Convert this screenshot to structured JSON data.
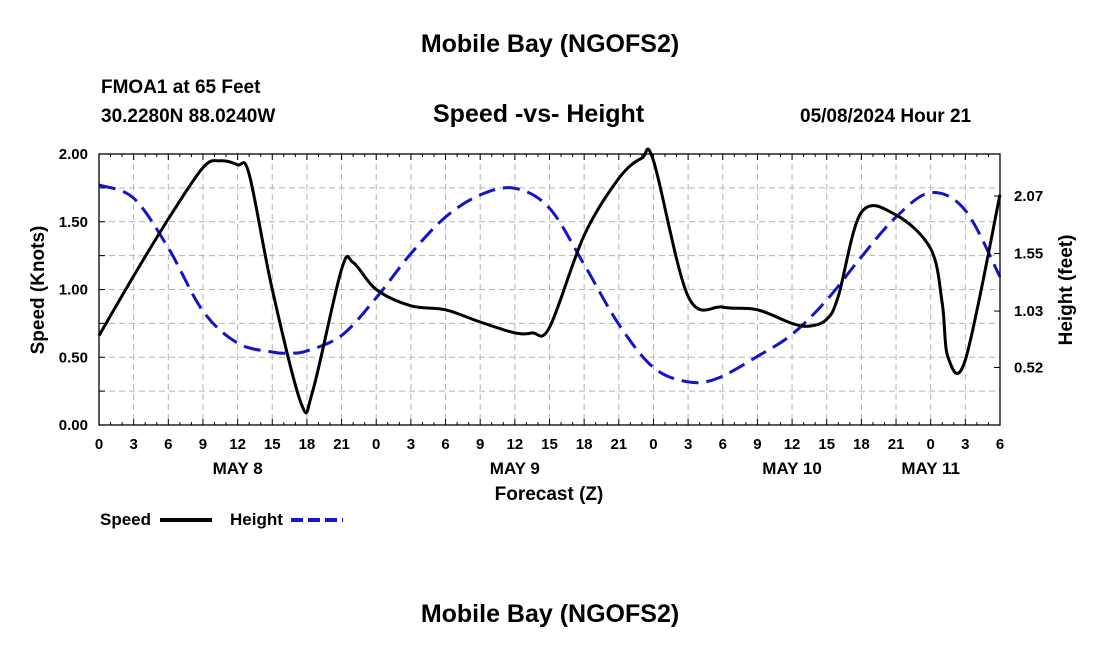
{
  "header": {
    "title": "Mobile Bay (NGOFS2)",
    "station": "FMOA1 at 65 Feet",
    "coords": "30.2280N  88.0240W",
    "subtitle": "Speed -vs- Height",
    "timestamp": "05/08/2024 Hour 21"
  },
  "footer": {
    "title": "Mobile Bay (NGOFS2)"
  },
  "chart_data": {
    "type": "line",
    "title": "Speed -vs- Height",
    "xlabel": "Forecast (Z)",
    "ylabel": "Speed (Knots)",
    "y2label": "Height (feet)",
    "x_tick_labels": [
      "0",
      "3",
      "6",
      "9",
      "12",
      "15",
      "18",
      "21",
      "0",
      "3",
      "6",
      "9",
      "12",
      "15",
      "18",
      "21",
      "0",
      "3",
      "6",
      "9",
      "12",
      "15",
      "18",
      "21",
      "0",
      "3",
      "6"
    ],
    "day_labels": [
      {
        "label": "MAY 8",
        "hour": 12
      },
      {
        "label": "MAY 9",
        "hour": 36
      },
      {
        "label": "MAY 10",
        "hour": 60
      },
      {
        "label": "MAY 11",
        "hour": 72
      }
    ],
    "xlim": [
      0,
      78
    ],
    "ylim": [
      0,
      2.0
    ],
    "y_ticks": [
      "0.00",
      "0.50",
      "1.00",
      "1.50",
      "2.00"
    ],
    "y2_ticks": [
      "0.52",
      "1.03",
      "1.55",
      "2.07"
    ],
    "y2_tick_values": [
      0.52,
      1.03,
      1.55,
      2.07
    ],
    "y2lim": [
      0.0,
      2.45
    ],
    "grid": true,
    "legend": "bottom-left",
    "series": [
      {
        "name": "Speed",
        "axis": "left",
        "color": "#000000",
        "dash": "solid",
        "x": [
          0,
          3,
          6,
          9,
          10.5,
          12,
          13,
          15,
          17.5,
          18.5,
          21,
          22,
          24,
          27,
          30,
          33,
          36,
          37.5,
          39,
          42,
          45,
          47,
          48,
          51,
          54,
          57,
          60,
          61.5,
          63,
          64,
          66,
          69,
          72,
          73,
          73.5,
          75,
          78
        ],
        "y": [
          0.66,
          1.1,
          1.52,
          1.9,
          1.95,
          1.92,
          1.85,
          1.0,
          0.16,
          0.25,
          1.15,
          1.2,
          1.0,
          0.88,
          0.85,
          0.76,
          0.68,
          0.68,
          0.72,
          1.4,
          1.82,
          1.97,
          1.95,
          0.95,
          0.87,
          0.85,
          0.75,
          0.73,
          0.78,
          0.95,
          1.57,
          1.55,
          1.3,
          0.9,
          0.5,
          0.48,
          1.7
        ]
      },
      {
        "name": "Height",
        "axis": "right",
        "color": "#1414c8",
        "dash": "dashed",
        "x": [
          0,
          3,
          6,
          9,
          12,
          15,
          16.5,
          18,
          21,
          24,
          27,
          30,
          33,
          36,
          39,
          42,
          45,
          48,
          51,
          53.5,
          57,
          60,
          63,
          66,
          69,
          72,
          75,
          78
        ],
        "y": [
          2.17,
          2.05,
          1.6,
          1.03,
          0.74,
          0.66,
          0.65,
          0.67,
          0.81,
          1.15,
          1.55,
          1.88,
          2.08,
          2.14,
          1.96,
          1.45,
          0.91,
          0.52,
          0.39,
          0.42,
          0.62,
          0.82,
          1.13,
          1.52,
          1.88,
          2.1,
          1.94,
          1.34
        ]
      }
    ]
  }
}
